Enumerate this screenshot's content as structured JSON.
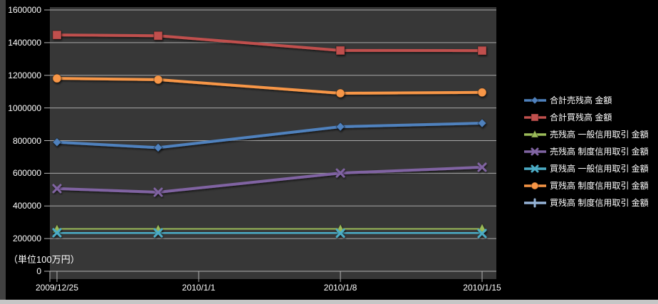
{
  "chart_data": {
    "type": "line",
    "title": "",
    "unit_label": "（単位100万円）",
    "xlabel": "",
    "ylabel": "",
    "ylim": [
      0,
      1600000
    ],
    "y_ticks": [
      0,
      200000,
      400000,
      600000,
      800000,
      1000000,
      1200000,
      1400000,
      1600000
    ],
    "x_tick_labels": [
      "2009/12/25",
      "2010/1/1",
      "2010/1/8",
      "2010/1/15"
    ],
    "x_dates": [
      "2009/12/25",
      "2009/12/30",
      "2010/1/8",
      "2010/1/15"
    ],
    "grid": true,
    "legend_position": "right",
    "plot_bg": "#373737",
    "gridline_color": "#d9d9d9",
    "axis_color": "#b3b3b3",
    "text_color": "#ffffff",
    "series": [
      {
        "name": "合計売残高 金額",
        "color": "#4F81BD",
        "marker": "diamond",
        "values": [
          790000,
          757000,
          885000,
          907000
        ]
      },
      {
        "name": "合計買残高 金額",
        "color": "#C0504D",
        "marker": "square",
        "values": [
          1447000,
          1442000,
          1352000,
          1351000
        ]
      },
      {
        "name": "売残高 一般信用取引 金額",
        "color": "#9BBB59",
        "marker": "triangle",
        "values": [
          257000,
          257000,
          258000,
          261000
        ]
      },
      {
        "name": "売残高 制度信用取引 金額",
        "color": "#8064A2",
        "marker": "x",
        "values": [
          506000,
          484000,
          601000,
          637000
        ]
      },
      {
        "name": "買残高 一般信用取引 金額",
        "color": "#4BACC6",
        "marker": "x",
        "values": [
          236000,
          235000,
          233000,
          231000
        ]
      },
      {
        "name": "買残高 制度信用取引 金額",
        "color": "#F79646",
        "marker": "circle",
        "values": [
          1181000,
          1173000,
          1090000,
          1095000
        ]
      },
      {
        "name": "買残高 制度信用取引 金額",
        "color": "#95B3D7",
        "marker": "plus",
        "values": [
          null,
          null,
          null,
          null
        ]
      }
    ]
  }
}
